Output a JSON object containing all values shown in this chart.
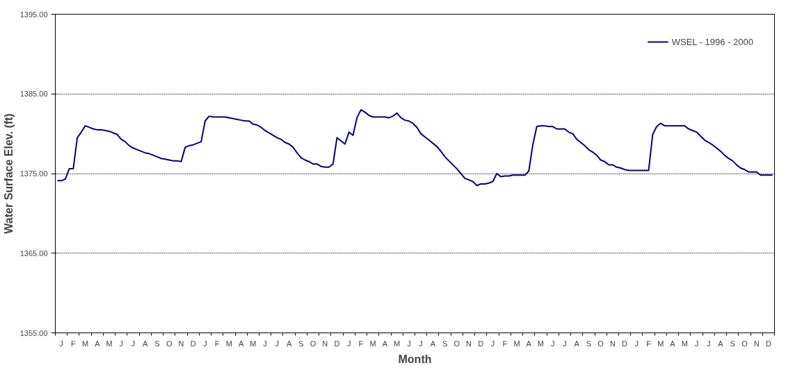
{
  "chart_data": {
    "type": "line",
    "xlabel": "Month",
    "ylabel": "Water Surface Elev. (ft)",
    "categories": [
      null,
      "J",
      null,
      null,
      "F",
      null,
      null,
      "M",
      null,
      null,
      "A",
      null,
      null,
      "M",
      null,
      null,
      "J",
      null,
      null,
      "J",
      null,
      null,
      "A",
      null,
      null,
      "S",
      null,
      null,
      "O",
      null,
      null,
      "N",
      null,
      null,
      "D",
      null,
      null,
      "J",
      null,
      null,
      "F",
      null,
      null,
      "M",
      null,
      null,
      "A",
      null,
      null,
      "M",
      null,
      null,
      "J",
      null,
      null,
      "J",
      null,
      null,
      "A",
      null,
      null,
      "S",
      null,
      null,
      "O",
      null,
      null,
      "N",
      null,
      null,
      "D",
      null,
      null,
      "J",
      null,
      null,
      "F",
      null,
      null,
      "M",
      null,
      null,
      "A",
      null,
      null,
      "M",
      null,
      null,
      "J",
      null,
      null,
      "J",
      null,
      null,
      "A",
      null,
      null,
      "S",
      null,
      null,
      "O",
      null,
      null,
      "N",
      null,
      null,
      "D",
      null,
      null,
      "J",
      null,
      null,
      "F",
      null,
      null,
      "M",
      null,
      null,
      "A",
      null,
      null,
      "M",
      null,
      null,
      "J",
      null,
      null,
      "J",
      null,
      null,
      "A",
      null,
      null,
      "S",
      null,
      null,
      "O",
      null,
      null,
      "N",
      null,
      null,
      "D",
      null,
      null,
      "J",
      null,
      null,
      "F",
      null,
      null,
      "M",
      null,
      null,
      "A",
      null,
      null,
      "M",
      null,
      null,
      "J",
      null,
      null,
      "J",
      null,
      null,
      "A",
      null,
      null,
      "S",
      null,
      null,
      "O",
      null,
      null,
      "N",
      null,
      null,
      "D",
      null
    ],
    "ylim": [
      1355,
      1395
    ],
    "yticks": [
      {
        "value": 1355,
        "label": "1355.00"
      },
      {
        "value": 1365,
        "label": "1365.00"
      },
      {
        "value": 1375,
        "label": "1375.00"
      },
      {
        "value": 1385,
        "label": "1385.00"
      },
      {
        "value": 1395,
        "label": "1395.00"
      }
    ],
    "grid": "y",
    "legend": "top right",
    "line_style": "solid",
    "series": [
      {
        "name": "WSEL - 1996 - 2000",
        "color": "#000080",
        "values": [
          1374.1,
          1374.1,
          1374.3,
          1375.6,
          1375.6,
          1379.5,
          1380.2,
          1381.0,
          1380.8,
          1380.6,
          1380.5,
          1380.5,
          1380.4,
          1380.3,
          1380.1,
          1379.9,
          1379.3,
          1379.0,
          1378.5,
          1378.2,
          1378.0,
          1377.8,
          1377.6,
          1377.5,
          1377.3,
          1377.1,
          1376.9,
          1376.8,
          1376.7,
          1376.6,
          1376.6,
          1376.5,
          1378.3,
          1378.5,
          1378.6,
          1378.8,
          1379.0,
          1381.6,
          1382.2,
          1382.1,
          1382.1,
          1382.1,
          1382.1,
          1382.0,
          1381.9,
          1381.8,
          1381.7,
          1381.6,
          1381.6,
          1381.2,
          1381.1,
          1380.8,
          1380.4,
          1380.1,
          1379.8,
          1379.5,
          1379.3,
          1378.9,
          1378.7,
          1378.3,
          1377.6,
          1377.0,
          1376.7,
          1376.5,
          1376.2,
          1376.2,
          1375.9,
          1375.8,
          1375.8,
          1376.2,
          1379.5,
          1379.1,
          1378.7,
          1380.2,
          1379.8,
          1382.0,
          1383.0,
          1382.7,
          1382.3,
          1382.1,
          1382.1,
          1382.1,
          1382.1,
          1382.0,
          1382.2,
          1382.6,
          1382.0,
          1381.7,
          1381.6,
          1381.3,
          1380.8,
          1380.0,
          1379.6,
          1379.2,
          1378.8,
          1378.4,
          1377.8,
          1377.1,
          1376.6,
          1376.1,
          1375.6,
          1375.0,
          1374.4,
          1374.2,
          1374.0,
          1373.5,
          1373.7,
          1373.7,
          1373.8,
          1374.0,
          1375.0,
          1374.6,
          1374.7,
          1374.7,
          1374.8,
          1374.8,
          1374.8,
          1374.8,
          1375.3,
          1378.6,
          1380.9,
          1381.0,
          1381.0,
          1380.9,
          1380.9,
          1380.6,
          1380.6,
          1380.6,
          1380.2,
          1380.0,
          1379.3,
          1378.9,
          1378.5,
          1378.0,
          1377.7,
          1377.3,
          1376.7,
          1376.5,
          1376.1,
          1376.1,
          1375.8,
          1375.7,
          1375.5,
          1375.4,
          1375.4,
          1375.4,
          1375.4,
          1375.4,
          1375.4,
          1379.9,
          1380.9,
          1381.3,
          1381.0,
          1381.0,
          1381.0,
          1381.0,
          1381.0,
          1381.0,
          1380.6,
          1380.4,
          1380.2,
          1379.7,
          1379.2,
          1378.9,
          1378.6,
          1378.2,
          1377.8,
          1377.3,
          1376.9,
          1376.6,
          1376.1,
          1375.7,
          1375.5,
          1375.2,
          1375.2,
          1375.2,
          1374.8,
          1374.8,
          1374.8,
          1374.8
        ]
      }
    ]
  }
}
